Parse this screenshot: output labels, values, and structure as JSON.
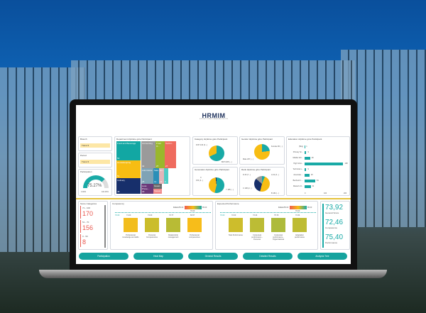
{
  "header": {
    "logo": "HRMIM",
    "logo_sub": "HOSPITALITY RESEARCH MANAGEMENT INSTITUTE"
  },
  "filters": {
    "branch_label": "Branch",
    "branch_value": "Tümü",
    "period_label": "Period",
    "period_value": "Tümü"
  },
  "participation": {
    "title": "Participation",
    "value": "75.27%",
    "min": "0.00%",
    "max": "100.00%",
    "fraction": 0.7527
  },
  "treemap": {
    "title": "Department ölçütüne göre Participant",
    "cells": [
      {
        "label": "Food and Beverage",
        "value": "54",
        "color": "#12a7a3"
      },
      {
        "label": "Housekeeping",
        "value": "51",
        "color": "#f7bd13"
      },
      {
        "label": "Culinary",
        "value": "48",
        "color": "#172f6b"
      },
      {
        "label": "Accounting",
        "value": "32",
        "color": "#9a9a9a"
      },
      {
        "label": "Front O...",
        "value": "27",
        "color": "#9ab72c"
      },
      {
        "label": "Techni...",
        "value": "27",
        "color": "#ef6b5e"
      },
      {
        "label": "Administra...",
        "value": "25",
        "color": "#7fa3b5"
      },
      {
        "label": "Loss Preve...",
        "value": "18",
        "color": "#6b3a7a"
      },
      {
        "label": "Sale...",
        "value": "14",
        "color": "#2b8fb8"
      },
      {
        "label": "Ho...",
        "value": "13",
        "color": "#e3b5b9"
      },
      {
        "label": "",
        "value": "9",
        "color": "#4fcdc6"
      },
      {
        "label": "Guest...",
        "value": "",
        "color": "#6a6a6a"
      },
      {
        "label": "Stewar...",
        "value": "",
        "color": "#f08a8a"
      }
    ]
  },
  "category": {
    "title": "Category ölçütüne göre Participant",
    "labels": [
      "FOH 130 (3...)",
      "BOH 265 (...)"
    ]
  },
  "gender": {
    "title": "Gender ölçütüne göre Participant",
    "labels": [
      "Female 90 (...)",
      "Male 297 (...)"
    ]
  },
  "generation": {
    "title": "Generation ölçütüne göre Participant",
    "labels": [
      "X",
      "153 (4...)",
      "Y 185 (...)"
    ]
  },
  "rank": {
    "title": "Rank ölçütüne göre Participant",
    "labels": [
      "D 30 (7...)",
      "A 19 (3...)",
      "C 108 (2...)",
      "B 184 (...)"
    ]
  },
  "education": {
    "title": "Education ölçütüne göre Participant",
    "axis": [
      "0",
      "100",
      "200"
    ],
    "rows": [
      {
        "label": "(Boş)",
        "value": 1
      },
      {
        "label": "Primary Sc...",
        "value": 9
      },
      {
        "label": "Middle Sch...",
        "value": 28
      },
      {
        "label": "High Scho...",
        "value": 198
      },
      {
        "label": "Technical s...",
        "value": 9
      },
      {
        "label": "Associate ...",
        "value": 25
      },
      {
        "label": "Bachelor's ...",
        "value": 54
      },
      {
        "label": "Master's D...",
        "value": 31
      }
    ]
  },
  "score_categories": {
    "title": "Score Categories",
    "items": [
      {
        "range": "71 - 100",
        "count": "170"
      },
      {
        "range": "51 - 70",
        "count": "156"
      },
      {
        "range": "0 - 50",
        "count": "8"
      }
    ]
  },
  "competency": {
    "title": "Competency",
    "colors_label": "Colors",
    "scale_min": "55.00",
    "scale_mid": "70.00",
    "scale_max": "85.00",
    "target": "70.00",
    "items": [
      {
        "label": "Professional knowledge and skills",
        "value": "71.00",
        "color": "#f2bd1d"
      },
      {
        "label": "Personal Competencies",
        "value": "74.00",
        "color": "#cbbd2b"
      },
      {
        "label": "Relationship management",
        "value": "73.77",
        "color": "#b8bb35"
      },
      {
        "label": "Professional competencies",
        "value": "69.57",
        "color": "#f7bd1a"
      }
    ]
  },
  "expected": {
    "title": "Expected Performance",
    "colors_label": "Colors",
    "scale_min": "55.00",
    "scale_mid": "70.00",
    "scale_max": "85.00",
    "target": "70.00",
    "items": [
      {
        "label": "Task Performance",
        "value": "72.00",
        "color": "#cdbd2c"
      },
      {
        "label": "Contextual performance - Personal",
        "value": "73.44",
        "color": "#bcbc35"
      },
      {
        "label": "Contextual performance - Organizational",
        "value": "75.79",
        "color": "#aebb3c"
      },
      {
        "label": "Adaptation performance",
        "value": "73.34",
        "color": "#bebc33"
      }
    ]
  },
  "scores": [
    {
      "value": "73,92",
      "label": "General Score"
    },
    {
      "value": "72,46",
      "label": "Competence"
    },
    {
      "value": "75,40",
      "label": "Performance"
    }
  ],
  "nav": [
    "Participation",
    "Heat Map",
    "General Results",
    "Detailed Results",
    "Analysis Tree"
  ],
  "colors": {
    "accent": "#15a39e",
    "yellow": "#f7bd13",
    "navy": "#172f6b"
  }
}
